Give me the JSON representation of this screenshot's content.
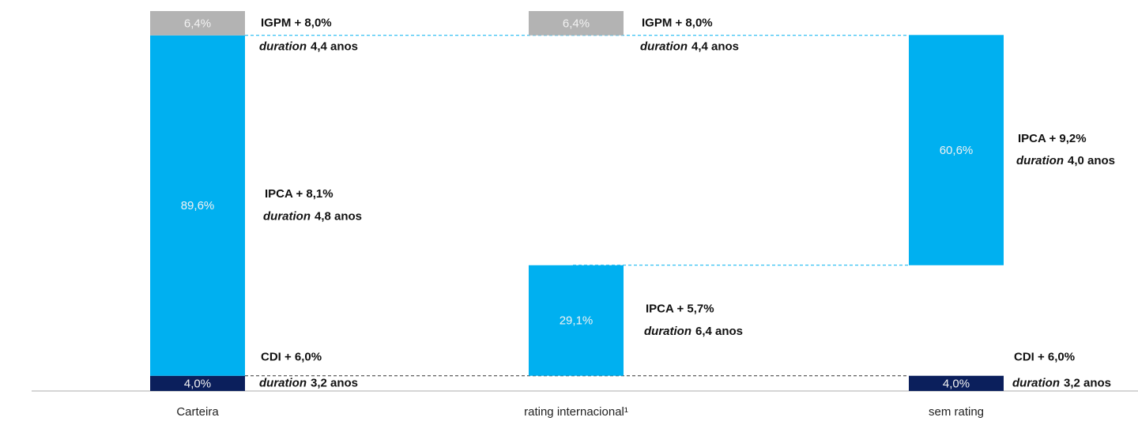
{
  "chart_data": {
    "type": "waterfall",
    "categories": [
      "Carteira",
      "rating internacional¹",
      "sem rating"
    ],
    "duration_word": "duration",
    "ylim": [
      0,
      100
    ],
    "series": [
      {
        "name": "CDI",
        "color": "#0b1f5c",
        "values": [
          4.0,
          null,
          4.0
        ],
        "value_labels": [
          "4,0%",
          null,
          "4,0%"
        ],
        "rates": [
          "CDI + 6,0%",
          null,
          "CDI + 6,0%"
        ],
        "durations": [
          "3,2 anos",
          null,
          "3,2 anos"
        ]
      },
      {
        "name": "IPCA",
        "color": "#00b0f0",
        "values": [
          89.6,
          29.1,
          60.6
        ],
        "value_labels": [
          "89,6%",
          "29,1%",
          "60,6%"
        ],
        "rates": [
          "IPCA + 8,1%",
          "IPCA + 5,7%",
          "IPCA + 9,2%"
        ],
        "durations": [
          "4,8 anos",
          "6,4 anos",
          "4,0 anos"
        ]
      },
      {
        "name": "IGPM",
        "color": "#b3b3b3",
        "values": [
          6.4,
          6.4,
          null
        ],
        "value_labels": [
          "6,4%",
          "6,4%",
          null
        ],
        "rates": [
          "IGPM + 8,0%",
          "IGPM + 8,0%",
          null
        ],
        "durations": [
          "4,4 anos",
          "4,4 anos",
          null
        ]
      }
    ]
  }
}
